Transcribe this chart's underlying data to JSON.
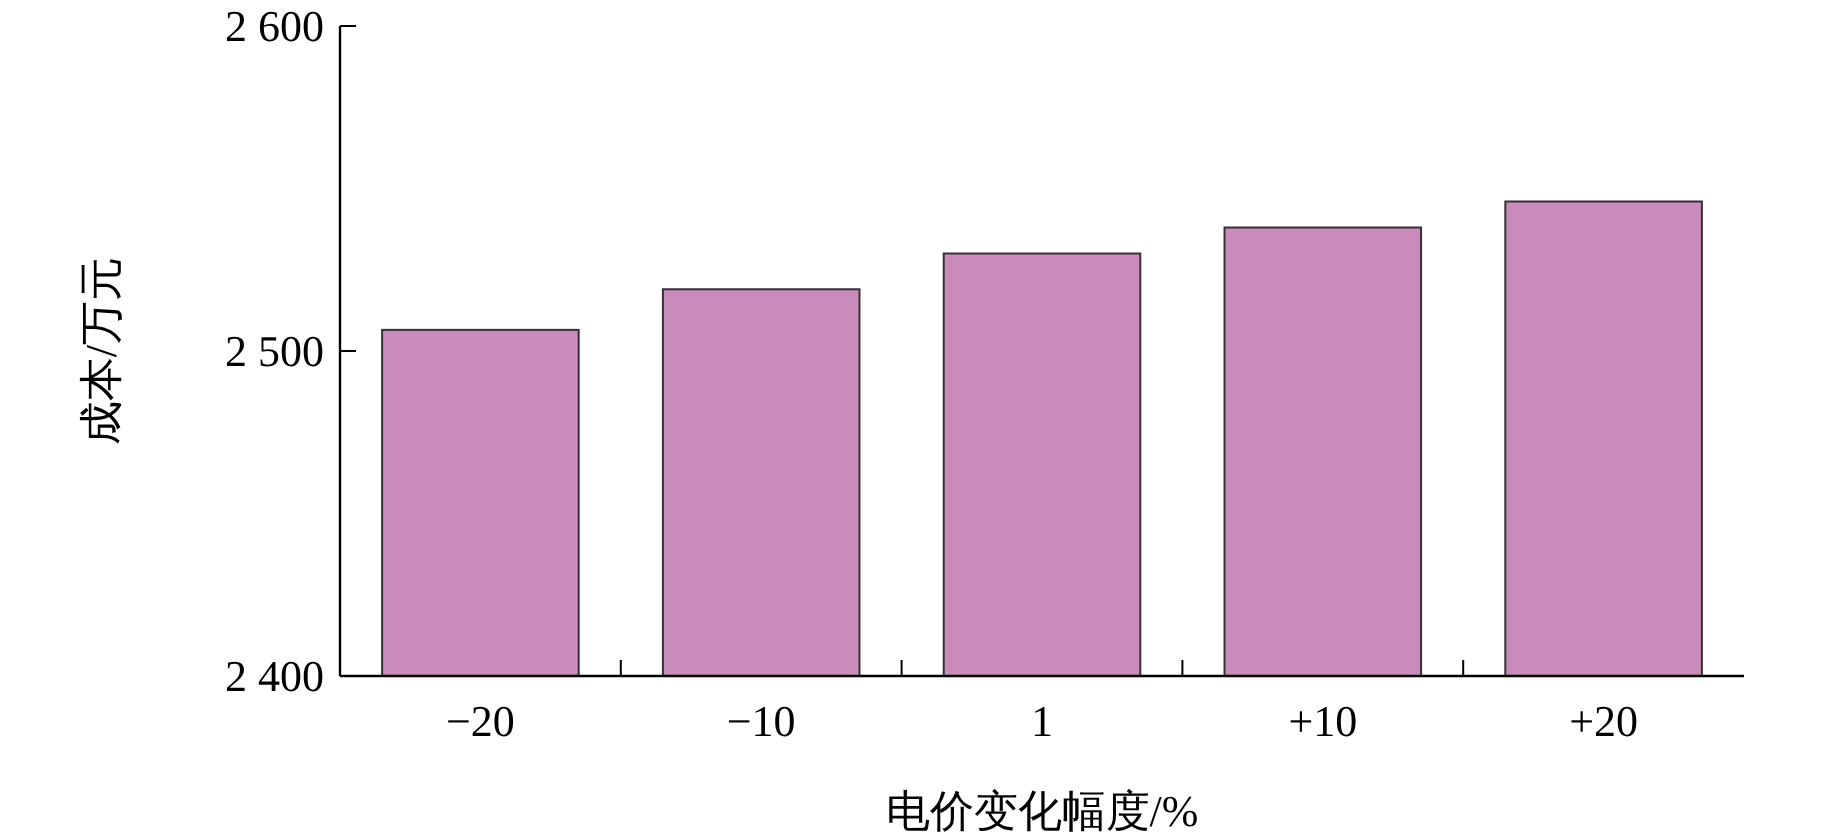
{
  "chart_data": {
    "type": "bar",
    "xlabel": "电价变化幅度/%",
    "ylabel": "成本/万元",
    "categories": [
      "−20",
      "−10",
      "1",
      "+10",
      "+20"
    ],
    "values": [
      2506.5,
      2519,
      2530,
      2538,
      2546
    ],
    "color": "#c98bba",
    "ylim": [
      2400,
      2600
    ],
    "yticks": [
      {
        "value": 2400,
        "label": "2 400"
      },
      {
        "value": 2500,
        "label": "2 500"
      },
      {
        "value": 2600,
        "label": "2 600"
      }
    ],
    "grid": false
  }
}
